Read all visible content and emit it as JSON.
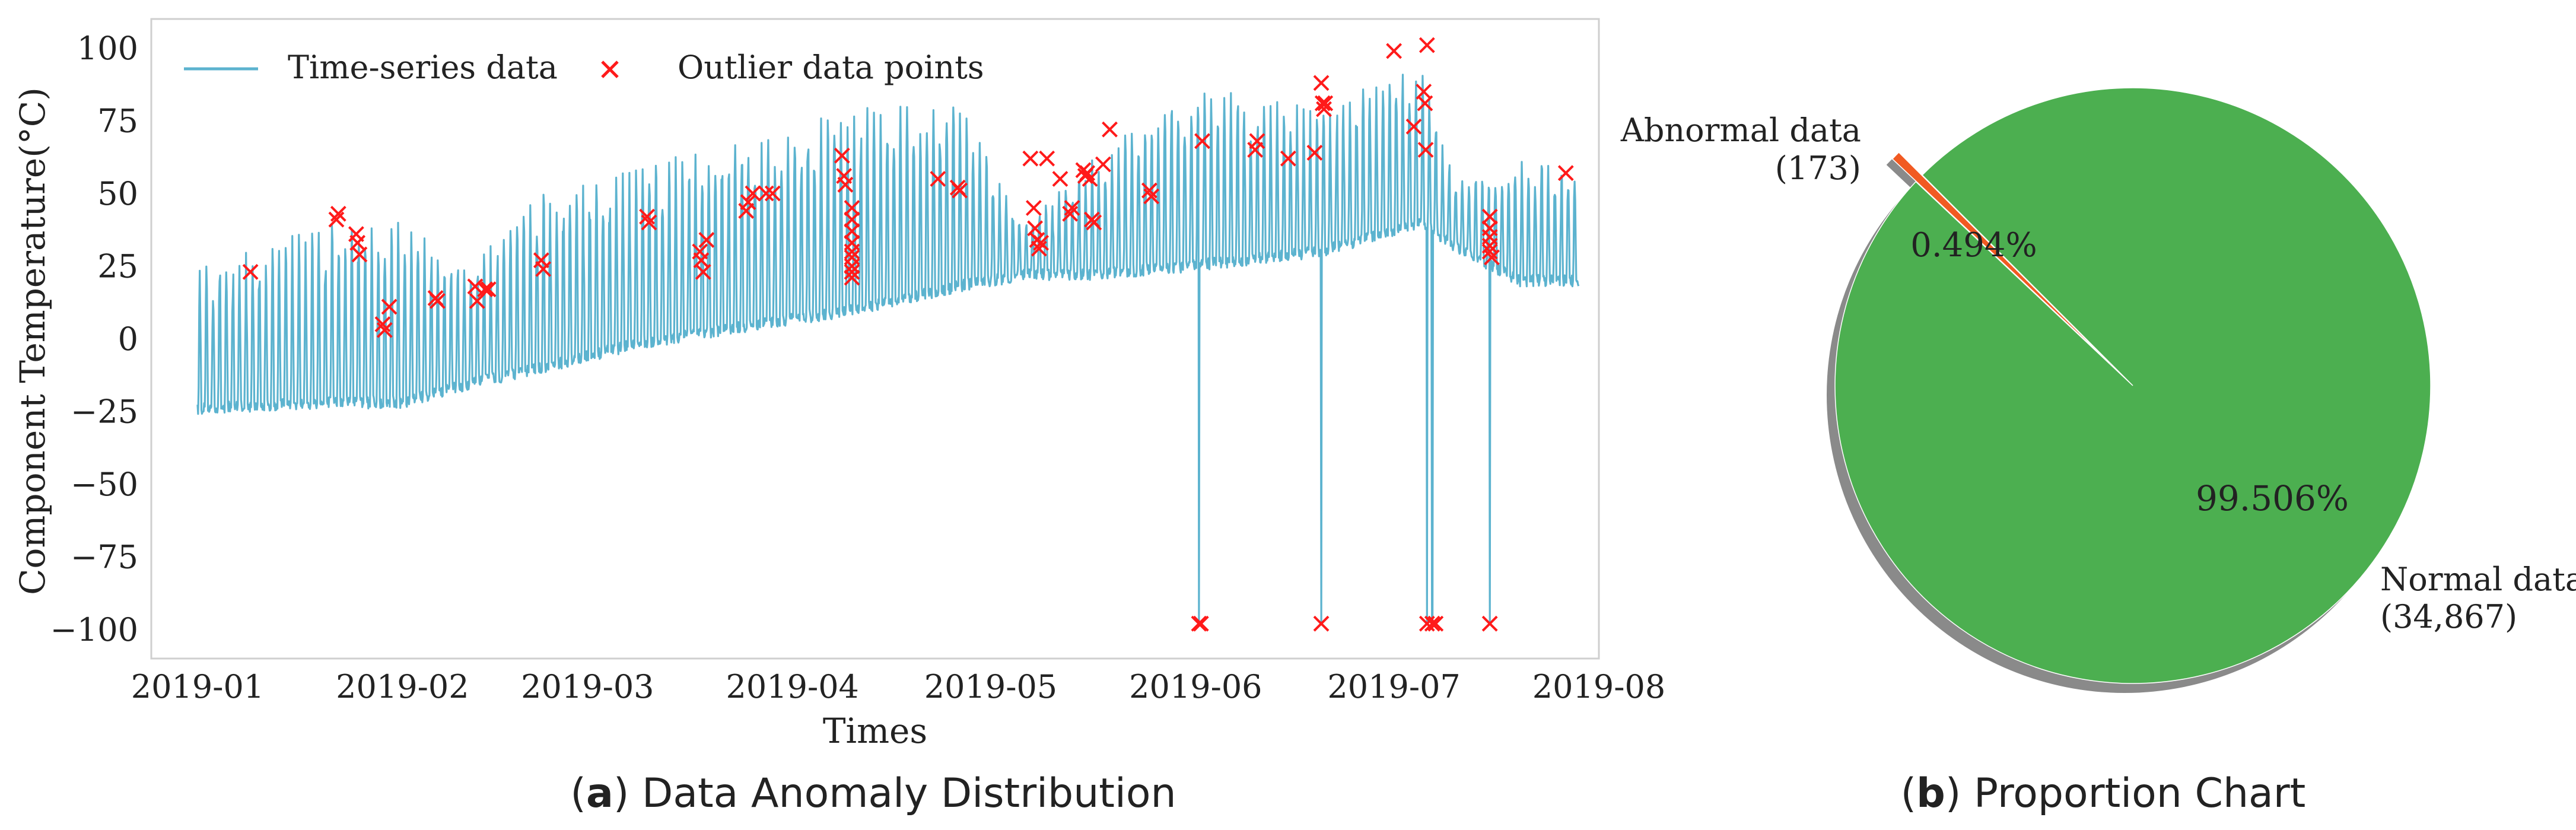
{
  "chart_data": [
    {
      "type": "line",
      "panel": "a",
      "caption_prefix": "a",
      "caption_text": " Data Anomaly Distribution",
      "xlabel": "Times",
      "ylabel": "Component Temperature(°C)",
      "ylim": [
        -110,
        110
      ],
      "yticks": [
        100,
        75,
        50,
        25,
        0,
        -25,
        -50,
        -75,
        -100
      ],
      "ytick_labels": [
        "100",
        "75",
        "50",
        "25",
        "0",
        "−25",
        "−50",
        "−75",
        "−100"
      ],
      "xlim": [
        -7,
        212
      ],
      "xticks": [
        0,
        31,
        59,
        90,
        120,
        151,
        181,
        212
      ],
      "xtick_labels": [
        "2019-01",
        "2019-02",
        "2019-03",
        "2019-04",
        "2019-05",
        "2019-06",
        "2019-07",
        "2019-08"
      ],
      "grid": false,
      "legend": {
        "position": "top-left",
        "entries": [
          "Time-series data",
          "Outlier data points"
        ]
      },
      "colors": {
        "line": "#5cb3cf",
        "outlier": "#ff1a1a",
        "frame": "#cfcfcf"
      },
      "series": [
        {
          "name": "Time-series data",
          "description": "daily temperature cycle",
          "start_day": 0,
          "end_day": 209,
          "cycle_days": 1,
          "band_keypoints": [
            {
              "day": 0,
              "low": -24,
              "high": 22
            },
            {
              "day": 20,
              "low": -22,
              "high": 38
            },
            {
              "day": 31,
              "low": -22,
              "high": 40
            },
            {
              "day": 42,
              "low": -15,
              "high": 24
            },
            {
              "day": 52,
              "low": -10,
              "high": 50
            },
            {
              "day": 66,
              "low": -2,
              "high": 58
            },
            {
              "day": 85,
              "low": 5,
              "high": 68
            },
            {
              "day": 100,
              "low": 10,
              "high": 78
            },
            {
              "day": 115,
              "low": 18,
              "high": 80
            },
            {
              "day": 125,
              "low": 22,
              "high": 40
            },
            {
              "day": 135,
              "low": 22,
              "high": 60
            },
            {
              "day": 150,
              "low": 25,
              "high": 85
            },
            {
              "day": 170,
              "low": 30,
              "high": 78
            },
            {
              "day": 185,
              "low": 40,
              "high": 95
            },
            {
              "day": 190,
              "low": 32,
              "high": 55
            },
            {
              "day": 200,
              "low": 20,
              "high": 60
            },
            {
              "day": 209,
              "low": 20,
              "high": 58
            }
          ],
          "drops": [
            {
              "day": 151.5,
              "value": -98
            },
            {
              "day": 170,
              "value": -98
            },
            {
              "day": 186,
              "value": -98
            },
            {
              "day": 186.8,
              "value": -98
            },
            {
              "day": 195.5,
              "value": -98
            }
          ]
        },
        {
          "name": "Outlier data points",
          "marker": "x",
          "points": [
            [
              8,
              23
            ],
            [
              21,
              41
            ],
            [
              21.3,
              43
            ],
            [
              24,
              36
            ],
            [
              24.2,
              33
            ],
            [
              24.5,
              29
            ],
            [
              28,
              5
            ],
            [
              28.3,
              3
            ],
            [
              29,
              11
            ],
            [
              36,
              14
            ],
            [
              36.3,
              13
            ],
            [
              42,
              18
            ],
            [
              42.3,
              13
            ],
            [
              43.5,
              17
            ],
            [
              44,
              17
            ],
            [
              52,
              27
            ],
            [
              52.3,
              24
            ],
            [
              68,
              42
            ],
            [
              68.3,
              40
            ],
            [
              76,
              30
            ],
            [
              76.2,
              27
            ],
            [
              76.5,
              23
            ],
            [
              77,
              34
            ],
            [
              83,
              44
            ],
            [
              83.3,
              47
            ],
            [
              84,
              50
            ],
            [
              86,
              50
            ],
            [
              87,
              50
            ],
            [
              97.5,
              63
            ],
            [
              97.8,
              56
            ],
            [
              98,
              53
            ],
            [
              99,
              45
            ],
            [
              99,
              41
            ],
            [
              99,
              37
            ],
            [
              99,
              33
            ],
            [
              99,
              30
            ],
            [
              99,
              28
            ],
            [
              99,
              25
            ],
            [
              99,
              23
            ],
            [
              99,
              21
            ],
            [
              112,
              55
            ],
            [
              115,
              52
            ],
            [
              115.3,
              51
            ],
            [
              126,
              62
            ],
            [
              126.5,
              45
            ],
            [
              126.7,
              38
            ],
            [
              127,
              34
            ],
            [
              127.3,
              31
            ],
            [
              127.6,
              33
            ],
            [
              128.5,
              62
            ],
            [
              130.5,
              55
            ],
            [
              132,
              43
            ],
            [
              132.3,
              45
            ],
            [
              134,
              58
            ],
            [
              134.3,
              56
            ],
            [
              134.6,
              57
            ],
            [
              135,
              55
            ],
            [
              135.3,
              41
            ],
            [
              135.6,
              40
            ],
            [
              137,
              60
            ],
            [
              138,
              72
            ],
            [
              144,
              51
            ],
            [
              144.3,
              49
            ],
            [
              152,
              68
            ],
            [
              151.5,
              -98
            ],
            [
              151.8,
              -98
            ],
            [
              160,
              65
            ],
            [
              160.3,
              68
            ],
            [
              165,
              62
            ],
            [
              169,
              64
            ],
            [
              170,
              88
            ],
            [
              170.2,
              81
            ],
            [
              170.4,
              79
            ],
            [
              170.6,
              81
            ],
            [
              170,
              -98
            ],
            [
              181,
              99
            ],
            [
              184,
              73
            ],
            [
              185.5,
              85
            ],
            [
              185.7,
              81
            ],
            [
              186,
              101
            ],
            [
              185.8,
              65
            ],
            [
              186,
              -98
            ],
            [
              186.8,
              -98
            ],
            [
              187.3,
              -98
            ],
            [
              195.5,
              42
            ],
            [
              195.5,
              38
            ],
            [
              195.5,
              35
            ],
            [
              195.5,
              32
            ],
            [
              195.5,
              30
            ],
            [
              195.8,
              28
            ],
            [
              195.5,
              -98
            ],
            [
              207,
              57
            ]
          ]
        }
      ]
    },
    {
      "type": "pie",
      "panel": "b",
      "caption_prefix": "b",
      "caption_text": " Proportion Chart",
      "slices": [
        {
          "label": "Abnormal data",
          "count_label": "(173)",
          "value": 173,
          "pct_label": "0.494%",
          "color": "#f15a22",
          "exploded": true
        },
        {
          "label": "Normal data",
          "count_label": "(34,867)",
          "value": 34867,
          "pct_label": "99.506%",
          "color": "#4caf50",
          "exploded": false
        }
      ],
      "shadow": true,
      "start_angle_deg": 135
    }
  ]
}
